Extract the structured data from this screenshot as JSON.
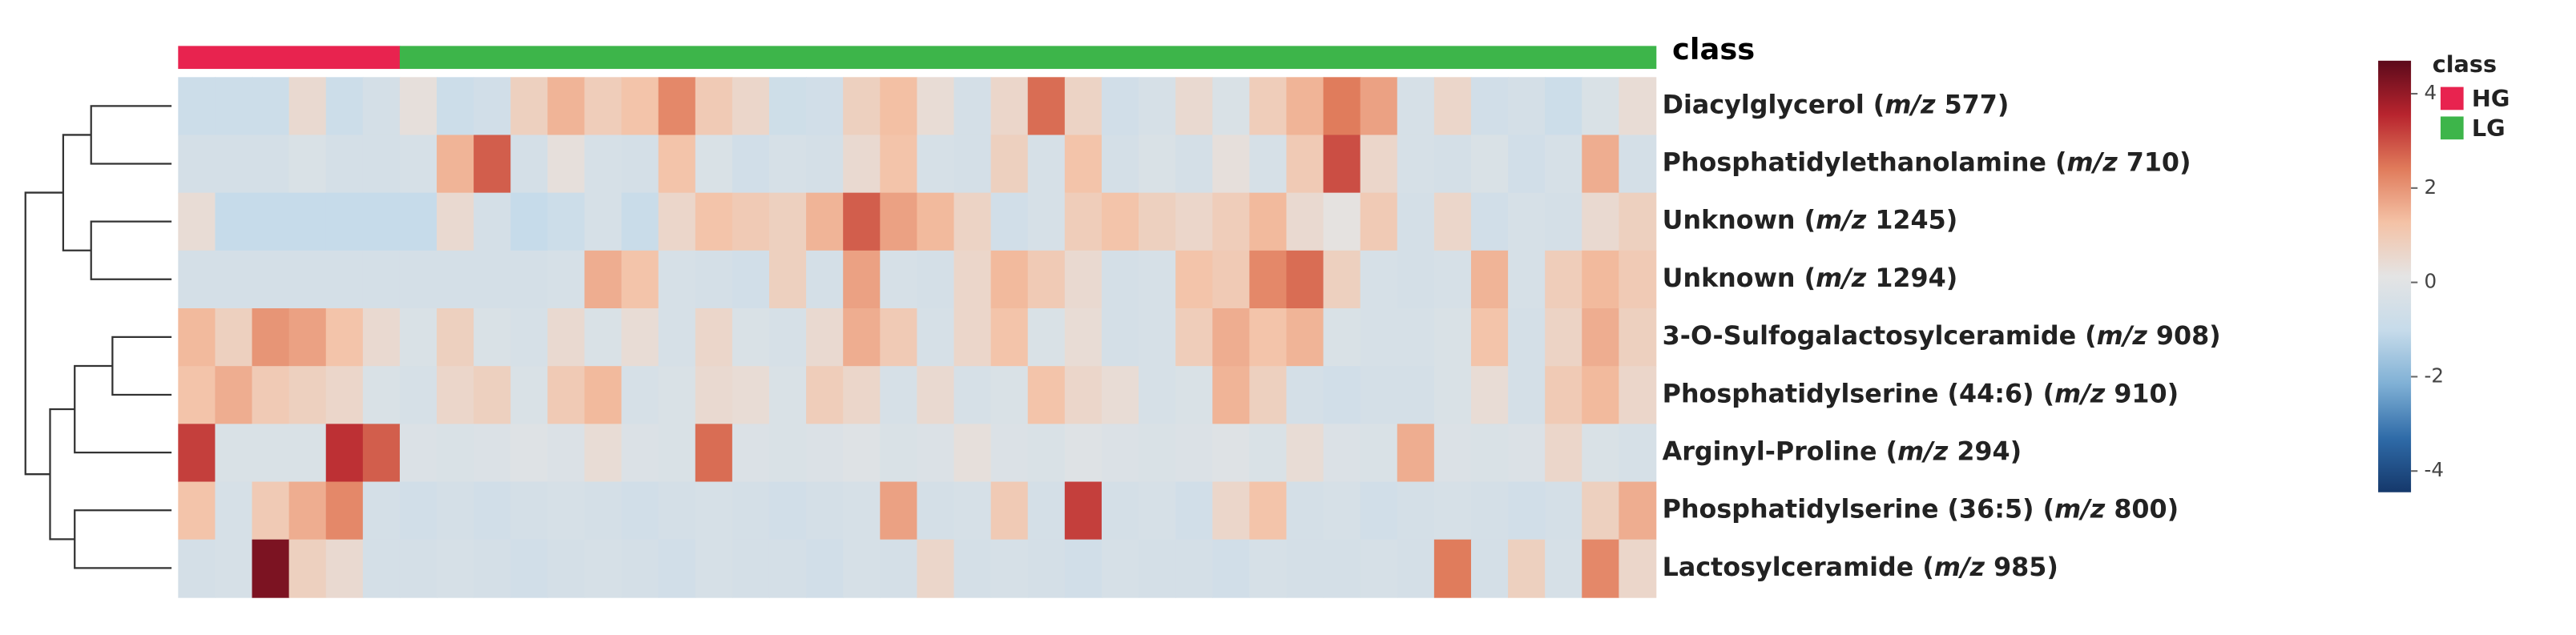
{
  "chart_data": {
    "type": "heatmap",
    "annotation_title": "class",
    "legend_title": "class",
    "classes": [
      {
        "name": "HG",
        "color": "#e8234f",
        "count": 6
      },
      {
        "name": "LG",
        "color": "#3db54a",
        "count": 34
      }
    ],
    "rows": [
      {
        "label": "Diacylglycerol (m/z 577)",
        "values": [
          -0.8,
          -0.8,
          -0.8,
          0.5,
          -0.8,
          -0.5,
          0.3,
          -0.8,
          -0.6,
          0.8,
          1.5,
          0.9,
          1.2,
          2.2,
          1.0,
          0.6,
          -0.7,
          -0.6,
          0.8,
          1.3,
          0.4,
          -0.5,
          0.6,
          2.6,
          0.7,
          -0.6,
          -0.4,
          0.5,
          -0.3,
          0.9,
          1.5,
          2.4,
          1.8,
          -0.4,
          0.6,
          -0.6,
          -0.5,
          -0.8,
          -0.3,
          0.4
        ]
      },
      {
        "label": "Phosphatidylethanolamine (m/z 710)",
        "values": [
          -0.5,
          -0.5,
          -0.5,
          -0.3,
          -0.5,
          -0.5,
          -0.4,
          1.5,
          2.8,
          -0.5,
          0.3,
          -0.4,
          -0.5,
          1.2,
          -0.3,
          -0.6,
          -0.4,
          -0.5,
          0.5,
          1.2,
          -0.4,
          -0.5,
          0.8,
          -0.4,
          1.2,
          -0.5,
          -0.3,
          -0.5,
          0.3,
          -0.4,
          1.0,
          3.0,
          0.6,
          -0.4,
          -0.5,
          -0.3,
          -0.6,
          -0.4,
          1.6,
          -0.5
        ]
      },
      {
        "label": "Unknown (m/z 1245)",
        "values": [
          0.4,
          -1,
          -1,
          -1,
          -1,
          -1,
          -1,
          0.5,
          -0.5,
          -1,
          -0.8,
          -0.4,
          -0.9,
          0.6,
          1.2,
          1.0,
          0.8,
          1.5,
          2.8,
          1.8,
          1.4,
          0.7,
          -0.6,
          -0.4,
          0.9,
          1.2,
          0.8,
          0.6,
          0.9,
          1.4,
          0.5,
          0.2,
          1.0,
          -0.5,
          0.6,
          -0.6,
          -0.4,
          -0.5,
          0.5,
          0.8
        ]
      },
      {
        "label": "Unknown (m/z 1294)",
        "values": [
          -0.5,
          -0.5,
          -0.5,
          -0.5,
          -0.5,
          -0.5,
          -0.5,
          -0.5,
          -0.5,
          -0.5,
          -0.4,
          1.6,
          1.2,
          -0.4,
          -0.5,
          -0.6,
          0.8,
          -0.5,
          1.8,
          -0.4,
          -0.5,
          0.6,
          1.4,
          1.0,
          0.5,
          -0.5,
          -0.4,
          1.2,
          1.0,
          2.2,
          2.6,
          0.8,
          -0.4,
          -0.5,
          -0.4,
          1.5,
          -0.4,
          0.9,
          1.4,
          1.0
        ]
      },
      {
        "label": "3-O-Sulfogalactosylceramide (m/z 908)",
        "values": [
          1.4,
          0.8,
          2.0,
          1.8,
          1.2,
          0.5,
          -0.3,
          0.8,
          -0.3,
          -0.4,
          0.5,
          -0.3,
          0.4,
          -0.4,
          0.6,
          -0.3,
          -0.4,
          0.5,
          1.6,
          1.0,
          -0.4,
          0.6,
          1.2,
          -0.3,
          0.4,
          -0.5,
          -0.4,
          0.9,
          1.6,
          1.2,
          1.5,
          -0.3,
          -0.4,
          -0.4,
          -0.3,
          1.2,
          -0.5,
          0.7,
          1.6,
          0.8
        ]
      },
      {
        "label": "Phosphatidylserine (44:6) (m/z 910)",
        "values": [
          1.2,
          1.6,
          1.0,
          0.8,
          0.6,
          -0.3,
          -0.4,
          0.6,
          0.8,
          -0.3,
          1.0,
          1.4,
          -0.4,
          -0.3,
          0.5,
          0.4,
          -0.3,
          0.9,
          0.6,
          -0.4,
          0.5,
          -0.4,
          -0.3,
          1.2,
          0.6,
          0.4,
          -0.4,
          -0.3,
          1.5,
          0.8,
          -0.5,
          -0.6,
          -0.5,
          -0.5,
          -0.3,
          0.4,
          -0.5,
          1.0,
          1.4,
          0.6
        ]
      },
      {
        "label": "Arginyl-Proline (m/z 294)",
        "values": [
          3.2,
          -0.3,
          -0.3,
          -0.3,
          3.4,
          2.8,
          -0.2,
          -0.3,
          -0.2,
          -0.1,
          -0.2,
          0.4,
          -0.2,
          -0.3,
          2.6,
          -0.2,
          -0.3,
          -0.2,
          -0.1,
          -0.3,
          -0.2,
          0.3,
          -0.2,
          -0.3,
          -0.1,
          -0.2,
          -0.3,
          -0.2,
          -0.1,
          -0.3,
          0.4,
          -0.2,
          -0.3,
          1.6,
          -0.2,
          -0.3,
          -0.2,
          0.6,
          -0.3,
          -0.4
        ]
      },
      {
        "label": "Phosphatidylserine (36:5) (m/z 800)",
        "values": [
          1.2,
          -0.4,
          1.0,
          1.6,
          2.2,
          -0.5,
          -0.6,
          -0.5,
          -0.6,
          -0.5,
          -0.4,
          -0.5,
          -0.6,
          -0.5,
          -0.4,
          -0.5,
          -0.6,
          -0.5,
          -0.4,
          1.8,
          -0.5,
          -0.4,
          1.0,
          -0.5,
          3.2,
          -0.5,
          -0.4,
          -0.6,
          0.6,
          1.2,
          -0.5,
          -0.4,
          -0.6,
          -0.5,
          -0.4,
          -0.5,
          -0.6,
          -0.5,
          0.8,
          1.6
        ]
      },
      {
        "label": "Lactosylceramide (m/z 985)",
        "values": [
          -0.5,
          -0.4,
          4.3,
          0.8,
          0.5,
          -0.5,
          -0.5,
          -0.4,
          -0.5,
          -0.6,
          -0.5,
          -0.4,
          -0.5,
          -0.6,
          -0.4,
          -0.5,
          -0.5,
          -0.6,
          -0.4,
          -0.5,
          0.6,
          -0.5,
          -0.4,
          -0.5,
          -0.6,
          -0.4,
          -0.5,
          -0.5,
          -0.6,
          -0.4,
          -0.5,
          -0.5,
          -0.4,
          -0.5,
          2.4,
          -0.5,
          0.8,
          -0.4,
          2.2,
          0.6
        ]
      }
    ],
    "clim": [
      -4.45,
      4.7
    ],
    "cticks": [
      4,
      2,
      0,
      -2,
      -4
    ],
    "colormap": [
      "#15386b",
      "#2f6ba8",
      "#7fb0d5",
      "#c6dbea",
      "#e4e4e4",
      "#f4c2a6",
      "#e07b5b",
      "#b8242e",
      "#5c0a1b"
    ]
  }
}
